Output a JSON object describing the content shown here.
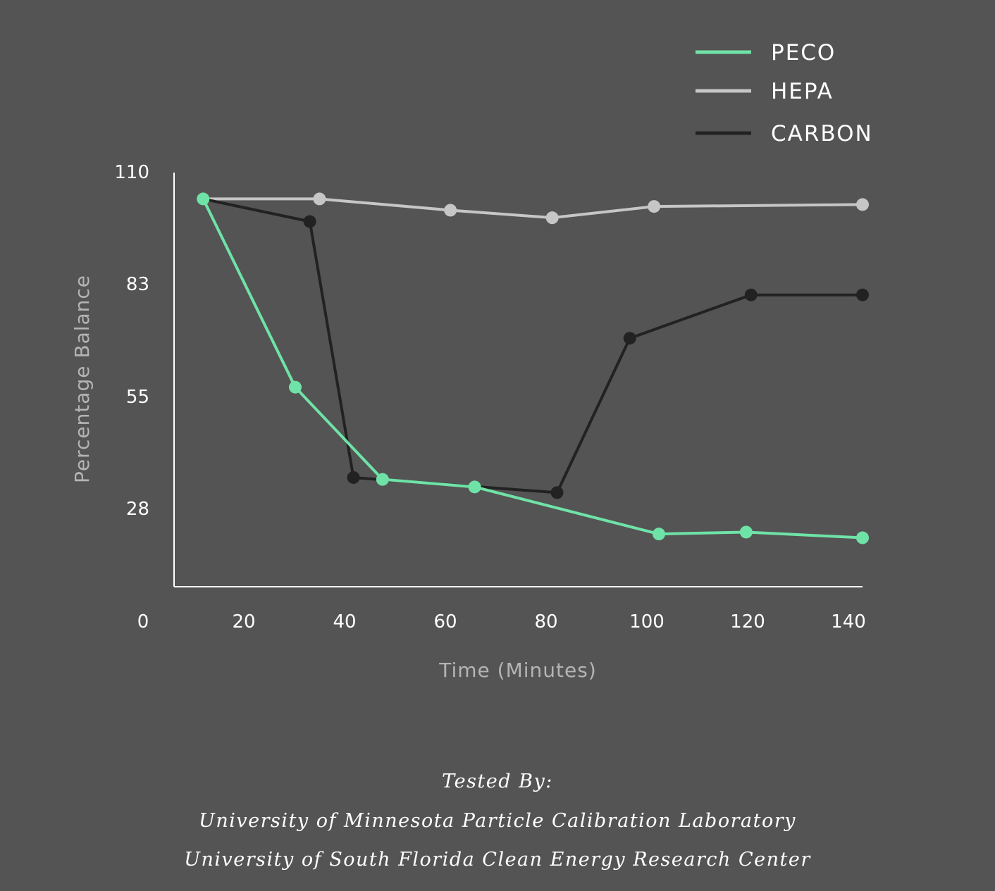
{
  "chart_data": {
    "type": "line",
    "xlabel": "Time (Minutes)",
    "ylabel": "Percentage Balance",
    "x_ticks": [
      0,
      20,
      40,
      60,
      80,
      100,
      120,
      140
    ],
    "y_ticks": [
      110,
      83,
      55,
      28
    ],
    "xlim": [
      0,
      142
    ],
    "ylim": [
      0,
      110
    ],
    "legend_position": "top-right",
    "grid": false,
    "series": [
      {
        "name": "PECO",
        "color": "#6fe3a7",
        "points": [
          [
            6,
            103
          ],
          [
            25,
            53
          ],
          [
            43,
            28.5
          ],
          [
            62,
            26.5
          ],
          [
            100,
            14
          ],
          [
            118,
            14.5
          ],
          [
            142,
            13
          ]
        ]
      },
      {
        "name": "HEPA",
        "color": "#c6c6c6",
        "points": [
          [
            6,
            103
          ],
          [
            30,
            103
          ],
          [
            57,
            100
          ],
          [
            78,
            98
          ],
          [
            99,
            101
          ],
          [
            142,
            101.5
          ]
        ]
      },
      {
        "name": "CARBON",
        "color": "#222222",
        "points": [
          [
            6,
            103
          ],
          [
            28,
            97
          ],
          [
            37,
            29
          ],
          [
            79,
            25
          ],
          [
            94,
            66
          ],
          [
            119,
            77.5
          ],
          [
            142,
            77.5
          ]
        ]
      }
    ]
  },
  "credits": {
    "heading": "Tested By:",
    "line1": "University of Minnesota Particle Calibration Laboratory",
    "line2": "University of South Florida Clean Energy Research Center"
  }
}
